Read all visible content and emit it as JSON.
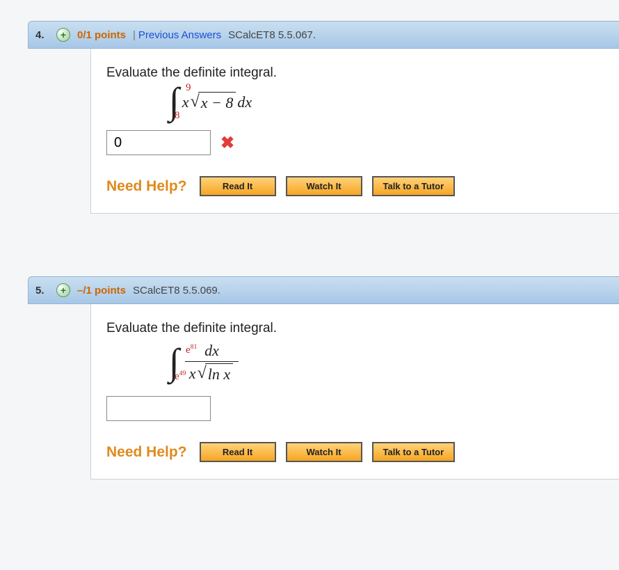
{
  "questions": [
    {
      "number": "4.",
      "points": "0/1 points",
      "has_prev_answers": true,
      "prev_answers_label": "Previous Answers",
      "ref": "SCalcET8 5.5.067.",
      "prompt": "Evaluate the definite integral.",
      "integral": {
        "lower": "8",
        "upper": "9",
        "type": "xsqrt",
        "pre": "x",
        "radicand": "x − 8",
        "dx": " dx"
      },
      "answer_value": "0",
      "mark": "wrong",
      "help": {
        "label": "Need Help?",
        "buttons": [
          "Read It",
          "Watch It",
          "Talk to a Tutor"
        ]
      }
    },
    {
      "number": "5.",
      "points": "–/1 points",
      "has_prev_answers": false,
      "ref": "SCalcET8 5.5.069.",
      "prompt": "Evaluate the definite integral.",
      "integral": {
        "lower_base": "e",
        "lower_exp": "49",
        "upper_base": "e",
        "upper_exp": "81",
        "type": "frac",
        "num": "dx",
        "den_pre": "x",
        "den_radicand": "ln x"
      },
      "answer_value": "",
      "mark": null,
      "help": {
        "label": "Need Help?",
        "buttons": [
          "Read It",
          "Watch It",
          "Talk to a Tutor"
        ]
      }
    }
  ],
  "colors": {
    "header_gradient_top": "#c9dff0",
    "header_gradient_bottom": "#a7c7e7",
    "points_color": "#cc6600",
    "link_color": "#1a4fd6",
    "wrong_color": "#e23b3b",
    "button_gradient_top": "#ffd27a",
    "button_gradient_bottom": "#f6a623",
    "need_help_color": "#e08a1e",
    "limit_color": "#c62020"
  }
}
